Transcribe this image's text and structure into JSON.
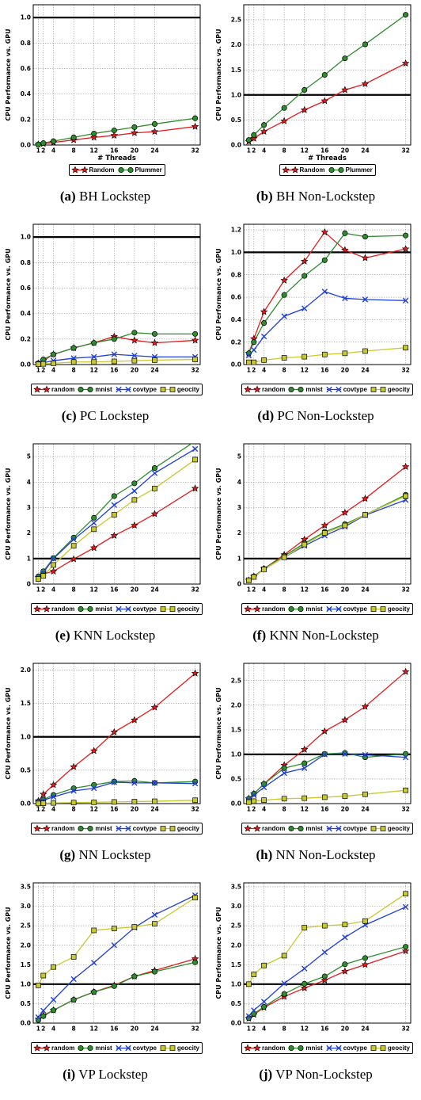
{
  "chart_data": [
    {
      "id": "a",
      "type": "line",
      "caption_letter": "(a)",
      "caption_text": "BH Lockstep",
      "xlabel": "# Threads",
      "ylabel": "CPU Performance vs. GPU",
      "x": [
        1,
        2,
        4,
        8,
        12,
        16,
        20,
        24,
        32
      ],
      "xticks": [
        "1",
        "2",
        "4",
        "8",
        "12",
        "16",
        "20",
        "24",
        "32"
      ],
      "xlim": [
        0,
        33
      ],
      "ylim": [
        0,
        1.1
      ],
      "yticks": [
        "0.0",
        "0.2",
        "0.4",
        "0.6",
        "0.8",
        "1.0"
      ],
      "ytick_values": [
        0,
        0.2,
        0.4,
        0.6,
        0.8,
        1.0
      ],
      "reference_line": 1.0,
      "grid": true,
      "legend_position": "bottom-center",
      "series": [
        {
          "name": "Random",
          "marker": "star",
          "color": "#e31a1c",
          "values": [
            0.005,
            0.01,
            0.02,
            0.04,
            0.06,
            0.075,
            0.095,
            0.105,
            0.145
          ]
        },
        {
          "name": "Plummer",
          "marker": "circle",
          "color": "#2e8b2e",
          "values": [
            0.005,
            0.015,
            0.03,
            0.06,
            0.09,
            0.115,
            0.14,
            0.165,
            0.21
          ]
        }
      ]
    },
    {
      "id": "b",
      "type": "line",
      "caption_letter": "(b)",
      "caption_text": "BH Non-Lockstep",
      "xlabel": "# Threads",
      "ylabel": "CPU Performance vs. GPU",
      "x": [
        1,
        2,
        4,
        8,
        12,
        16,
        20,
        24,
        32
      ],
      "xticks": [
        "1",
        "2",
        "4",
        "8",
        "12",
        "16",
        "20",
        "24",
        "32"
      ],
      "xlim": [
        0,
        33
      ],
      "ylim": [
        0,
        2.8
      ],
      "yticks": [
        "0.0",
        "0.5",
        "1.0",
        "1.5",
        "2.0",
        "2.5"
      ],
      "ytick_values": [
        0,
        0.5,
        1.0,
        1.5,
        2.0,
        2.5
      ],
      "reference_line": 1.0,
      "grid": true,
      "legend_position": "bottom-center",
      "series": [
        {
          "name": "Random",
          "marker": "star",
          "color": "#e31a1c",
          "values": [
            0.07,
            0.13,
            0.27,
            0.48,
            0.7,
            0.88,
            1.1,
            1.22,
            1.63
          ]
        },
        {
          "name": "Plummer",
          "marker": "circle",
          "color": "#2e8b2e",
          "values": [
            0.1,
            0.2,
            0.4,
            0.74,
            1.1,
            1.4,
            1.73,
            2.01,
            2.6
          ]
        }
      ]
    },
    {
      "id": "c",
      "type": "line",
      "caption_letter": "(c)",
      "caption_text": "PC Lockstep",
      "xlabel": "",
      "ylabel": "CPU Performance vs. GPU",
      "x": [
        1,
        2,
        4,
        8,
        12,
        16,
        20,
        24,
        32
      ],
      "xticks": [
        "1",
        "2",
        "4",
        "8",
        "12",
        "16",
        "20",
        "24",
        "32"
      ],
      "xlim": [
        0,
        33
      ],
      "ylim": [
        0,
        1.1
      ],
      "yticks": [
        "0.0",
        "0.2",
        "0.4",
        "0.6",
        "0.8",
        "1.0"
      ],
      "ytick_values": [
        0,
        0.2,
        0.4,
        0.6,
        0.8,
        1.0
      ],
      "reference_line": 1.0,
      "grid": true,
      "legend_position": "bottom-center",
      "series": [
        {
          "name": "random",
          "marker": "star",
          "color": "#e31a1c",
          "values": [
            0.01,
            0.03,
            0.08,
            0.13,
            0.17,
            0.22,
            0.19,
            0.17,
            0.19
          ]
        },
        {
          "name": "mnist",
          "marker": "circle",
          "color": "#2e8b2e",
          "values": [
            0.01,
            0.04,
            0.08,
            0.13,
            0.17,
            0.2,
            0.25,
            0.24,
            0.24
          ]
        },
        {
          "name": "covtype",
          "marker": "x",
          "color": "#1f3fd8",
          "values": [
            0.005,
            0.015,
            0.03,
            0.05,
            0.06,
            0.08,
            0.07,
            0.06,
            0.06
          ]
        },
        {
          "name": "geocity",
          "marker": "square",
          "color": "#c8c832",
          "values": [
            0.002,
            0.005,
            0.01,
            0.02,
            0.02,
            0.025,
            0.03,
            0.035,
            0.04
          ]
        }
      ]
    },
    {
      "id": "d",
      "type": "line",
      "caption_letter": "(d)",
      "caption_text": "PC Non-Lockstep",
      "xlabel": "",
      "ylabel": "CPU Performance vs. GPU",
      "x": [
        1,
        2,
        4,
        8,
        12,
        16,
        20,
        24,
        32
      ],
      "xticks": [
        "1",
        "2",
        "4",
        "8",
        "12",
        "16",
        "20",
        "24",
        "32"
      ],
      "xlim": [
        0,
        33
      ],
      "ylim": [
        0,
        1.25
      ],
      "yticks": [
        "0.0",
        "0.2",
        "0.4",
        "0.6",
        "0.8",
        "1.0",
        "1.2"
      ],
      "ytick_values": [
        0,
        0.2,
        0.4,
        0.6,
        0.8,
        1.0,
        1.2
      ],
      "reference_line": 1.0,
      "grid": true,
      "legend_position": "bottom-center",
      "series": [
        {
          "name": "random",
          "marker": "star",
          "color": "#e31a1c",
          "values": [
            0.1,
            0.23,
            0.47,
            0.75,
            0.92,
            1.18,
            1.02,
            0.95,
            1.03
          ]
        },
        {
          "name": "mnist",
          "marker": "circle",
          "color": "#2e8b2e",
          "values": [
            0.1,
            0.2,
            0.37,
            0.62,
            0.79,
            0.93,
            1.17,
            1.14,
            1.15
          ]
        },
        {
          "name": "covtype",
          "marker": "x",
          "color": "#1f3fd8",
          "values": [
            0.08,
            0.13,
            0.25,
            0.43,
            0.5,
            0.65,
            0.59,
            0.58,
            0.57
          ]
        },
        {
          "name": "geocity",
          "marker": "square",
          "color": "#c8c832",
          "values": [
            0.02,
            0.02,
            0.04,
            0.06,
            0.07,
            0.09,
            0.1,
            0.12,
            0.15
          ]
        }
      ]
    },
    {
      "id": "e",
      "type": "line",
      "caption_letter": "(e)",
      "caption_text": "KNN Lockstep",
      "xlabel": "",
      "ylabel": "CPU Performance vs. GPU",
      "x": [
        1,
        2,
        4,
        8,
        12,
        16,
        20,
        24,
        32
      ],
      "xticks": [
        "1",
        "2",
        "4",
        "8",
        "12",
        "16",
        "20",
        "24",
        "32"
      ],
      "xlim": [
        0,
        33
      ],
      "ylim": [
        0,
        5.5
      ],
      "yticks": [
        "0",
        "1",
        "2",
        "3",
        "4",
        "5"
      ],
      "ytick_values": [
        0,
        1,
        2,
        3,
        4,
        5
      ],
      "reference_line": 1.0,
      "grid": true,
      "legend_position": "bottom-center",
      "series": [
        {
          "name": "random",
          "marker": "star",
          "color": "#e31a1c",
          "values": [
            0.25,
            0.4,
            0.5,
            0.98,
            1.42,
            1.9,
            2.3,
            2.75,
            3.75
          ]
        },
        {
          "name": "mnist",
          "marker": "circle",
          "color": "#2e8b2e",
          "values": [
            0.3,
            0.5,
            1.02,
            1.82,
            2.6,
            3.45,
            3.95,
            4.55,
            5.6
          ]
        },
        {
          "name": "covtype",
          "marker": "x",
          "color": "#1f3fd8",
          "values": [
            0.25,
            0.45,
            1.0,
            1.75,
            2.4,
            3.1,
            3.65,
            4.35,
            5.3
          ]
        },
        {
          "name": "geocity",
          "marker": "square",
          "color": "#c8c832",
          "values": [
            0.2,
            0.32,
            0.75,
            1.5,
            2.15,
            2.72,
            3.3,
            3.75,
            4.88
          ]
        }
      ]
    },
    {
      "id": "f",
      "type": "line",
      "caption_letter": "(f)",
      "caption_text": "KNN Non-Lockstep",
      "xlabel": "",
      "ylabel": "CPU Performance vs. GPU",
      "x": [
        1,
        2,
        4,
        8,
        12,
        16,
        20,
        24,
        32
      ],
      "xticks": [
        "1",
        "2",
        "4",
        "8",
        "12",
        "16",
        "20",
        "24",
        "32"
      ],
      "xlim": [
        0,
        33
      ],
      "ylim": [
        0,
        5.5
      ],
      "yticks": [
        "0",
        "1",
        "2",
        "3",
        "4",
        "5"
      ],
      "ytick_values": [
        0,
        1,
        2,
        3,
        4,
        5
      ],
      "reference_line": 1.0,
      "grid": true,
      "legend_position": "bottom-center",
      "series": [
        {
          "name": "random",
          "marker": "star",
          "color": "#e31a1c",
          "values": [
            0.15,
            0.3,
            0.6,
            1.15,
            1.75,
            2.3,
            2.8,
            3.35,
            4.6
          ]
        },
        {
          "name": "mnist",
          "marker": "circle",
          "color": "#2e8b2e",
          "values": [
            0.15,
            0.3,
            0.6,
            1.1,
            1.6,
            2.05,
            2.35,
            2.72,
            3.5
          ]
        },
        {
          "name": "covtype",
          "marker": "x",
          "color": "#1f3fd8",
          "values": [
            0.15,
            0.28,
            0.58,
            1.05,
            1.5,
            1.9,
            2.25,
            2.7,
            3.3
          ]
        },
        {
          "name": "geocity",
          "marker": "square",
          "color": "#c8c832",
          "values": [
            0.15,
            0.28,
            0.58,
            1.05,
            1.55,
            2.0,
            2.3,
            2.72,
            3.45
          ]
        }
      ]
    },
    {
      "id": "g",
      "type": "line",
      "caption_letter": "(g)",
      "caption_text": "NN Lockstep",
      "xlabel": "",
      "ylabel": "CPU Performance vs. GPU",
      "x": [
        1,
        2,
        4,
        8,
        12,
        16,
        20,
        24,
        32
      ],
      "xticks": [
        "1",
        "2",
        "4",
        "8",
        "12",
        "16",
        "20",
        "24",
        "32"
      ],
      "xlim": [
        0,
        33
      ],
      "ylim": [
        0,
        2.1
      ],
      "yticks": [
        "0.0",
        "0.5",
        "1.0",
        "1.5",
        "2.0"
      ],
      "ytick_values": [
        0,
        0.5,
        1.0,
        1.5,
        2.0
      ],
      "reference_line": 1.0,
      "grid": true,
      "legend_position": "bottom-center",
      "series": [
        {
          "name": "random",
          "marker": "star",
          "color": "#e31a1c",
          "values": [
            0.04,
            0.14,
            0.28,
            0.55,
            0.79,
            1.07,
            1.25,
            1.44,
            1.95
          ]
        },
        {
          "name": "mnist",
          "marker": "circle",
          "color": "#2e8b2e",
          "values": [
            0.03,
            0.06,
            0.13,
            0.23,
            0.28,
            0.33,
            0.34,
            0.31,
            0.33
          ]
        },
        {
          "name": "covtype",
          "marker": "x",
          "color": "#1f3fd8",
          "values": [
            0.02,
            0.05,
            0.1,
            0.19,
            0.23,
            0.32,
            0.31,
            0.31,
            0.3
          ]
        },
        {
          "name": "geocity",
          "marker": "square",
          "color": "#c8c832",
          "values": [
            0.002,
            0.005,
            0.01,
            0.015,
            0.02,
            0.025,
            0.03,
            0.035,
            0.05
          ]
        }
      ]
    },
    {
      "id": "h",
      "type": "line",
      "caption_letter": "(h)",
      "caption_text": "NN Non-Lockstep",
      "xlabel": "",
      "ylabel": "CPU Performance vs. GPU",
      "x": [
        1,
        2,
        4,
        8,
        12,
        16,
        20,
        24,
        32
      ],
      "xticks": [
        "1",
        "2",
        "4",
        "8",
        "12",
        "16",
        "20",
        "24",
        "32"
      ],
      "xlim": [
        0,
        33
      ],
      "ylim": [
        0,
        2.85
      ],
      "yticks": [
        "0.0",
        "0.5",
        "1.0",
        "1.5",
        "2.0",
        "2.5"
      ],
      "ytick_values": [
        0,
        0.5,
        1.0,
        1.5,
        2.0,
        2.5
      ],
      "reference_line": 1.0,
      "grid": true,
      "legend_position": "bottom-center",
      "series": [
        {
          "name": "random",
          "marker": "star",
          "color": "#e31a1c",
          "values": [
            0.1,
            0.2,
            0.4,
            0.78,
            1.1,
            1.47,
            1.7,
            1.97,
            2.68
          ]
        },
        {
          "name": "mnist",
          "marker": "circle",
          "color": "#2e8b2e",
          "values": [
            0.1,
            0.2,
            0.4,
            0.72,
            0.82,
            1.01,
            1.03,
            0.94,
            1.01
          ]
        },
        {
          "name": "covtype",
          "marker": "x",
          "color": "#1f3fd8",
          "values": [
            0.08,
            0.17,
            0.33,
            0.62,
            0.72,
            1.0,
            1.01,
            0.99,
            0.94
          ]
        },
        {
          "name": "geocity",
          "marker": "square",
          "color": "#c8c832",
          "values": [
            0.03,
            0.05,
            0.07,
            0.1,
            0.11,
            0.13,
            0.15,
            0.19,
            0.27
          ]
        }
      ]
    },
    {
      "id": "i",
      "type": "line",
      "caption_letter": "(i)",
      "caption_text": "VP Lockstep",
      "xlabel": "",
      "ylabel": "CPU Performance vs. GPU",
      "x": [
        1,
        2,
        4,
        8,
        12,
        16,
        20,
        24,
        32
      ],
      "xticks": [
        "1",
        "2",
        "4",
        "8",
        "12",
        "16",
        "20",
        "24",
        "32"
      ],
      "xlim": [
        0,
        33
      ],
      "ylim": [
        0,
        3.6
      ],
      "yticks": [
        "0.0",
        "0.5",
        "1.0",
        "1.5",
        "2.0",
        "2.5",
        "3.0",
        "3.5"
      ],
      "ytick_values": [
        0,
        0.5,
        1.0,
        1.5,
        2.0,
        2.5,
        3.0,
        3.5
      ],
      "reference_line": 1.0,
      "grid": true,
      "legend_position": "bottom-center",
      "series": [
        {
          "name": "random",
          "marker": "star",
          "color": "#e31a1c",
          "values": [
            0.1,
            0.2,
            0.33,
            0.6,
            0.8,
            0.97,
            1.2,
            1.35,
            1.65
          ]
        },
        {
          "name": "mnist",
          "marker": "circle",
          "color": "#2e8b2e",
          "values": [
            0.08,
            0.18,
            0.33,
            0.6,
            0.8,
            0.95,
            1.2,
            1.32,
            1.56
          ]
        },
        {
          "name": "covtype",
          "marker": "x",
          "color": "#1f3fd8",
          "values": [
            0.15,
            0.32,
            0.6,
            1.13,
            1.55,
            2.0,
            2.45,
            2.78,
            3.28
          ]
        },
        {
          "name": "geocity",
          "marker": "square",
          "color": "#c8c832",
          "values": [
            0.97,
            1.22,
            1.44,
            1.7,
            2.38,
            2.43,
            2.47,
            2.55,
            3.22
          ]
        }
      ]
    },
    {
      "id": "j",
      "type": "line",
      "caption_letter": "(j)",
      "caption_text": "VP Non-Lockstep",
      "xlabel": "",
      "ylabel": "CPU Performance vs. GPU",
      "x": [
        1,
        2,
        4,
        8,
        12,
        16,
        20,
        24,
        32
      ],
      "xticks": [
        "1",
        "2",
        "4",
        "8",
        "12",
        "16",
        "20",
        "24",
        "32"
      ],
      "xlim": [
        0,
        33
      ],
      "ylim": [
        0,
        3.6
      ],
      "yticks": [
        "0.0",
        "0.5",
        "1.0",
        "1.5",
        "2.0",
        "2.5",
        "3.0",
        "3.5"
      ],
      "ytick_values": [
        0,
        0.5,
        1.0,
        1.5,
        2.0,
        2.5,
        3.0,
        3.5
      ],
      "reference_line": 1.0,
      "grid": true,
      "legend_position": "bottom-center",
      "series": [
        {
          "name": "random",
          "marker": "star",
          "color": "#e31a1c",
          "values": [
            0.12,
            0.22,
            0.4,
            0.68,
            0.9,
            1.1,
            1.33,
            1.5,
            1.85
          ]
        },
        {
          "name": "mnist",
          "marker": "circle",
          "color": "#2e8b2e",
          "values": [
            0.13,
            0.24,
            0.42,
            0.75,
            1.01,
            1.2,
            1.51,
            1.67,
            1.96
          ]
        },
        {
          "name": "covtype",
          "marker": "x",
          "color": "#1f3fd8",
          "values": [
            0.18,
            0.33,
            0.55,
            1.02,
            1.4,
            1.82,
            2.2,
            2.52,
            2.98
          ]
        },
        {
          "name": "geocity",
          "marker": "square",
          "color": "#c8c832",
          "values": [
            1.0,
            1.25,
            1.48,
            1.73,
            2.45,
            2.5,
            2.53,
            2.62,
            3.32
          ]
        }
      ]
    }
  ]
}
